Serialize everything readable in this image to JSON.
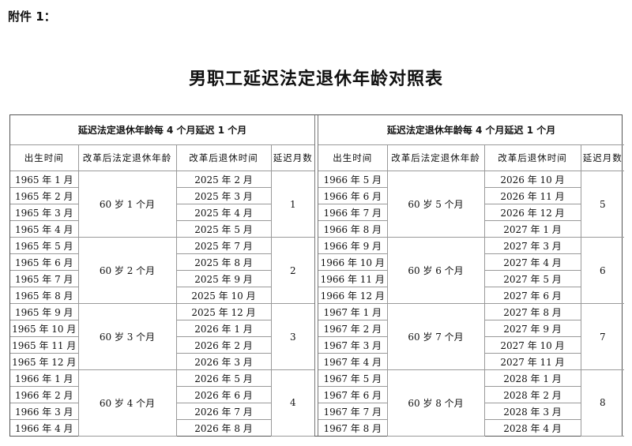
{
  "attachment": "附件 1：",
  "title": "男职工延迟法定退休年龄对照表",
  "tables": [
    {
      "heading": "延迟法定退休年龄每 4 个月延迟 1 个月",
      "columns": [
        "出生时间",
        "改革后法定退休年龄",
        "改革后退休时间",
        "延迟月数"
      ],
      "groups": [
        {
          "age": "60 岁 1 个月",
          "delay": "1",
          "rows": [
            [
              "1965 年 1 月",
              "2025 年 2 月"
            ],
            [
              "1965 年 2 月",
              "2025 年 3 月"
            ],
            [
              "1965 年 3 月",
              "2025 年 4 月"
            ],
            [
              "1965 年 4 月",
              "2025 年 5 月"
            ]
          ]
        },
        {
          "age": "60 岁 2 个月",
          "delay": "2",
          "rows": [
            [
              "1965 年 5 月",
              "2025 年 7 月"
            ],
            [
              "1965 年 6 月",
              "2025 年 8 月"
            ],
            [
              "1965 年 7 月",
              "2025 年 9 月"
            ],
            [
              "1965 年 8 月",
              "2025 年 10 月"
            ]
          ]
        },
        {
          "age": "60 岁 3 个月",
          "delay": "3",
          "rows": [
            [
              "1965 年 9 月",
              "2025 年 12 月"
            ],
            [
              "1965 年 10 月",
              "2026 年 1 月"
            ],
            [
              "1965 年 11 月",
              "2026 年 2 月"
            ],
            [
              "1965 年 12 月",
              "2026 年 3 月"
            ]
          ]
        },
        {
          "age": "60 岁 4 个月",
          "delay": "4",
          "rows": [
            [
              "1966 年 1 月",
              "2026 年 5 月"
            ],
            [
              "1966 年 2 月",
              "2026 年 6 月"
            ],
            [
              "1966 年 3 月",
              "2026 年 7 月"
            ],
            [
              "1966 年 4 月",
              "2026 年 8 月"
            ]
          ]
        }
      ]
    },
    {
      "heading": "延迟法定退休年龄每 4 个月延迟 1 个月",
      "columns": [
        "出生时间",
        "改革后法定退休年龄",
        "改革后退休时间",
        "延迟月数"
      ],
      "groups": [
        {
          "age": "60 岁 5 个月",
          "delay": "5",
          "rows": [
            [
              "1966 年 5 月",
              "2026 年 10 月"
            ],
            [
              "1966 年 6 月",
              "2026 年 11 月"
            ],
            [
              "1966 年 7 月",
              "2026 年 12 月"
            ],
            [
              "1966 年 8 月",
              "2027 年 1 月"
            ]
          ]
        },
        {
          "age": "60 岁 6 个月",
          "delay": "6",
          "rows": [
            [
              "1966 年 9 月",
              "2027 年 3 月"
            ],
            [
              "1966 年 10 月",
              "2027 年 4 月"
            ],
            [
              "1966 年 11 月",
              "2027 年 5 月"
            ],
            [
              "1966 年 12 月",
              "2027 年 6 月"
            ]
          ]
        },
        {
          "age": "60 岁 7 个月",
          "delay": "7",
          "rows": [
            [
              "1967 年 1 月",
              "2027 年 8 月"
            ],
            [
              "1967 年 2 月",
              "2027 年 9 月"
            ],
            [
              "1967 年 3 月",
              "2027 年 10 月"
            ],
            [
              "1967 年 4 月",
              "2027 年 11 月"
            ]
          ]
        },
        {
          "age": "60 岁 8 个月",
          "delay": "8",
          "rows": [
            [
              "1967 年 5 月",
              "2028 年 1 月"
            ],
            [
              "1967 年 6 月",
              "2028 年 2 月"
            ],
            [
              "1967 年 7 月",
              "2028 年 3 月"
            ],
            [
              "1967 年 8 月",
              "2028 年 4 月"
            ]
          ]
        }
      ]
    }
  ]
}
